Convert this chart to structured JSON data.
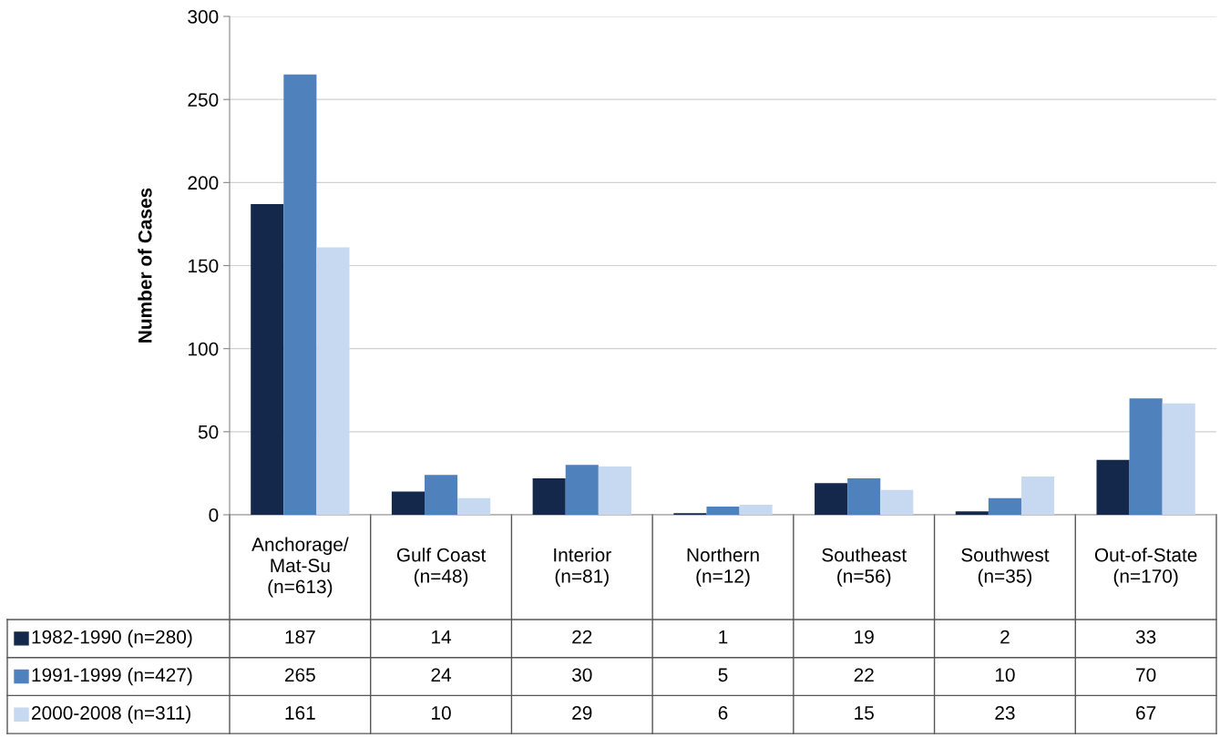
{
  "chart_data": {
    "type": "bar",
    "ylabel": "Number of Cases",
    "categories": [
      "Anchorage/\nMat-Su\n(n=613)",
      "Gulf Coast\n(n=48)",
      "Interior\n(n=81)",
      "Northern\n(n=12)",
      "Southeast\n(n=56)",
      "Southwest\n(n=35)",
      "Out-of-State\n(n=170)"
    ],
    "series": [
      {
        "name": "1982-1990 (n=280)",
        "color": "#14284b",
        "values": [
          187,
          14,
          22,
          1,
          19,
          2,
          33
        ]
      },
      {
        "name": "1991-1999 (n=427)",
        "color": "#4f81bd",
        "values": [
          265,
          24,
          30,
          5,
          22,
          10,
          70
        ]
      },
      {
        "name": "2000-2008 (n=311)",
        "color": "#c6d9f1",
        "values": [
          161,
          10,
          29,
          6,
          15,
          23,
          67
        ]
      }
    ],
    "ylim": [
      0,
      300
    ],
    "yticks": [
      0,
      50,
      100,
      150,
      200,
      250,
      300
    ],
    "grid": "y",
    "legend": "bottom",
    "data_labels": true
  }
}
